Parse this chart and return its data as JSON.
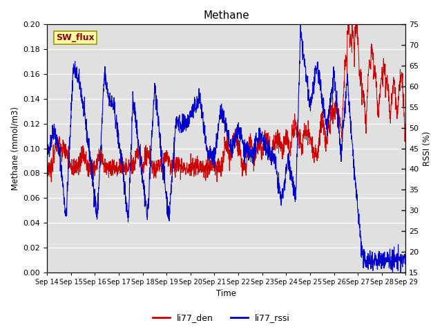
{
  "title": "Methane",
  "xlabel": "Time",
  "ylabel_left": "Methane (mmol/m3)",
  "ylabel_right": "RSSI (%)",
  "annotation": "SW_flux",
  "ylim_left": [
    0.0,
    0.2
  ],
  "ylim_right": [
    15,
    75
  ],
  "yticks_left": [
    0.0,
    0.02,
    0.04,
    0.06,
    0.08,
    0.1,
    0.12,
    0.14,
    0.16,
    0.18,
    0.2
  ],
  "yticks_right": [
    15,
    20,
    25,
    30,
    35,
    40,
    45,
    50,
    55,
    60,
    65,
    70,
    75
  ],
  "xtick_labels": [
    "Sep 14",
    "Sep 15",
    "Sep 16",
    "Sep 17",
    "Sep 18",
    "Sep 19",
    "Sep 20",
    "Sep 21",
    "Sep 22",
    "Sep 23",
    "Sep 24",
    "Sep 25",
    "Sep 26",
    "Sep 27",
    "Sep 28",
    "Sep 29"
  ],
  "color_red": "#cc0000",
  "color_blue": "#0000cc",
  "legend_labels": [
    "li77_den",
    "li77_rssi"
  ],
  "bg_color": "#e0e0e0",
  "annotation_bg": "#ffffaa",
  "annotation_text_color": "#8b0000",
  "annotation_border": "#999900"
}
